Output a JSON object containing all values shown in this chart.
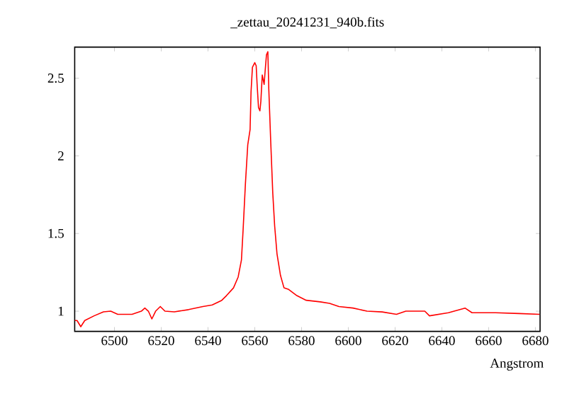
{
  "chart_data": {
    "type": "line",
    "title": "_zettau_20241231_940b.fits",
    "xlabel": "Angstrom",
    "color": "#ff0000",
    "x": [
      6483,
      6484,
      6485.6,
      6487.3,
      6491.3,
      6495.3,
      6498.4,
      6501.4,
      6507.5,
      6511.5,
      6513,
      6514.5,
      6516,
      6517.6,
      6519.6,
      6521.6,
      6525.6,
      6531.7,
      6537.8,
      6541.8,
      6545.9,
      6547.9,
      6550.9,
      6552.9,
      6554.3,
      6555,
      6556,
      6557,
      6558,
      6558.4,
      6559,
      6560,
      6560.6,
      6561,
      6561.6,
      6562.2,
      6562.6,
      6563.2,
      6564,
      6564.4,
      6565,
      6565.6,
      6566,
      6566.8,
      6567.7,
      6568.5,
      6569.5,
      6571,
      6572.5,
      6574.5,
      6578,
      6582,
      6588,
      6592,
      6596,
      6602,
      6608,
      6614.5,
      6620.6,
      6624.6,
      6632.7,
      6634.7,
      6642.8,
      6649.9,
      6652.9,
      6663,
      6673,
      6681.8
    ],
    "values": [
      0.94,
      0.94,
      0.9,
      0.94,
      0.97,
      0.996,
      1.0,
      0.98,
      0.98,
      1.0,
      1.02,
      1.0,
      0.95,
      1.0,
      1.03,
      1.0,
      0.996,
      1.01,
      1.03,
      1.04,
      1.07,
      1.1,
      1.15,
      1.22,
      1.33,
      1.52,
      1.82,
      2.07,
      2.17,
      2.41,
      2.57,
      2.6,
      2.58,
      2.46,
      2.31,
      2.29,
      2.35,
      2.52,
      2.46,
      2.54,
      2.65,
      2.67,
      2.43,
      2.1,
      1.76,
      1.55,
      1.37,
      1.23,
      1.15,
      1.14,
      1.1,
      1.07,
      1.06,
      1.05,
      1.03,
      1.02,
      1.0,
      0.995,
      0.98,
      1.0,
      1.0,
      0.97,
      0.99,
      1.02,
      0.99,
      0.99,
      0.985,
      0.98
    ],
    "xlim": [
      6483,
      6682
    ],
    "ylim": [
      0.87,
      2.7
    ],
    "xticks": [
      6500,
      6520,
      6540,
      6560,
      6580,
      6600,
      6620,
      6640,
      6660,
      6680
    ],
    "yticks": [
      1,
      1.5,
      2,
      2.5
    ]
  }
}
